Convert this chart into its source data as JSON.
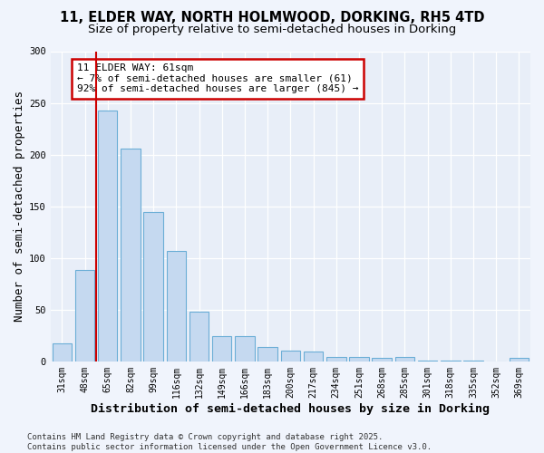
{
  "title_line1": "11, ELDER WAY, NORTH HOLMWOOD, DORKING, RH5 4TD",
  "title_line2": "Size of property relative to semi-detached houses in Dorking",
  "xlabel": "Distribution of semi-detached houses by size in Dorking",
  "ylabel": "Number of semi-detached properties",
  "categories": [
    "31sqm",
    "48sqm",
    "65sqm",
    "82sqm",
    "99sqm",
    "116sqm",
    "132sqm",
    "149sqm",
    "166sqm",
    "183sqm",
    "200sqm",
    "217sqm",
    "234sqm",
    "251sqm",
    "268sqm",
    "285sqm",
    "301sqm",
    "318sqm",
    "335sqm",
    "352sqm",
    "369sqm"
  ],
  "values": [
    17,
    88,
    243,
    206,
    144,
    107,
    48,
    24,
    24,
    14,
    10,
    9,
    4,
    4,
    3,
    4,
    1,
    1,
    1,
    0,
    3
  ],
  "bar_color": "#c5d9f0",
  "bar_edge_color": "#6baed6",
  "highlight_index": 2,
  "highlight_color": "#cc0000",
  "annotation_text": "11 ELDER WAY: 61sqm\n← 7% of semi-detached houses are smaller (61)\n92% of semi-detached houses are larger (845) →",
  "annotation_box_color": "#ffffff",
  "annotation_box_edge_color": "#cc0000",
  "ylim": [
    0,
    300
  ],
  "yticks": [
    0,
    50,
    100,
    150,
    200,
    250,
    300
  ],
  "footnote": "Contains HM Land Registry data © Crown copyright and database right 2025.\nContains public sector information licensed under the Open Government Licence v3.0.",
  "bg_color": "#f0f4fc",
  "plot_bg_color": "#e8eef8",
  "title_fontsize": 10.5,
  "subtitle_fontsize": 9.5,
  "axis_label_fontsize": 9,
  "tick_fontsize": 7,
  "footnote_fontsize": 6.5,
  "annotation_fontsize": 8
}
